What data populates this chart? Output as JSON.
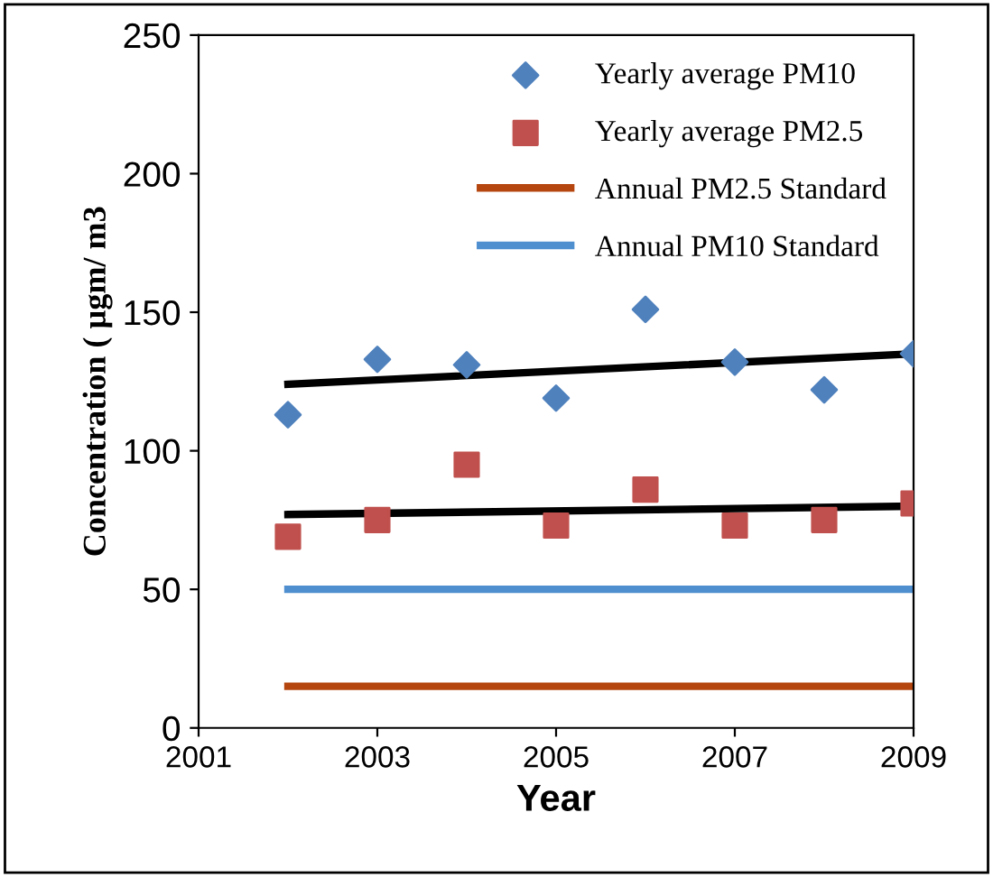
{
  "chart_data": {
    "type": "scatter",
    "xlabel": "Year",
    "ylabel": "Concentration ( µgm/ m3",
    "x": [
      2002,
      2003,
      2004,
      2005,
      2006,
      2007,
      2008,
      2009
    ],
    "series": [
      {
        "name": "Yearly average PM10",
        "marker": "diamond",
        "color": "#4f81bd",
        "values": [
          113,
          133,
          131,
          119,
          151,
          132,
          122,
          135
        ]
      },
      {
        "name": "Yearly average PM2.5",
        "marker": "square",
        "color": "#c0504d",
        "values": [
          69,
          75,
          95,
          73,
          86,
          73,
          75,
          81
        ]
      },
      {
        "name": "Annual PM2.5 Standard",
        "type": "line",
        "color": "#b5460f",
        "values": [
          15,
          15,
          15,
          15,
          15,
          15,
          15,
          15
        ]
      },
      {
        "name": "Annual PM10 Standard",
        "type": "line",
        "color": "#4f8fd0",
        "values": [
          50,
          50,
          50,
          50,
          50,
          50,
          50,
          50
        ]
      },
      {
        "type": "line",
        "color": "#000000",
        "values": [
          124,
          null,
          null,
          null,
          null,
          null,
          null,
          135
        ]
      },
      {
        "type": "line",
        "color": "#000000",
        "values": [
          77,
          null,
          null,
          null,
          null,
          null,
          null,
          80
        ]
      }
    ],
    "xlim": [
      2001,
      2009
    ],
    "xticks": [
      2001,
      2003,
      2005,
      2007,
      2009
    ],
    "ylim": [
      0,
      250
    ],
    "yticks": [
      0,
      50,
      100,
      150,
      200,
      250
    ],
    "legend": "top right",
    "grid": false
  }
}
